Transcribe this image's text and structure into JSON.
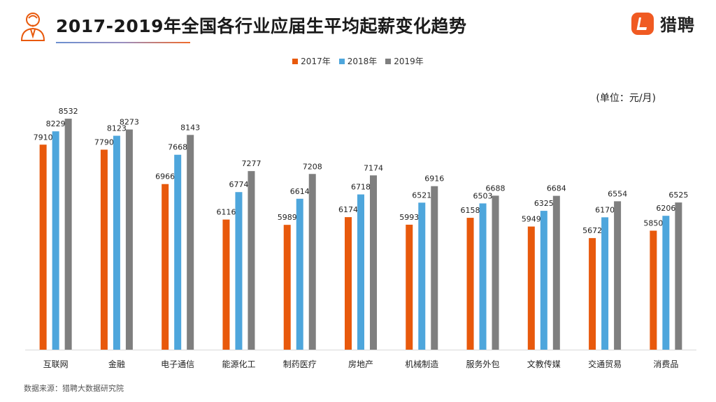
{
  "header": {
    "title": "2017-2019年全国各行业应届生平均起薪变化趋势",
    "brand_name": "猎聘",
    "brand_color": "#f05a22"
  },
  "unit_label": "(单位：元/月)",
  "source_label": "数据来源：猎聘大数据研究院",
  "colors": {
    "2017": "#e8590c",
    "2018": "#4ea6dc",
    "2019": "#7f7f7f"
  },
  "chart_data": {
    "type": "bar",
    "categories": [
      "互联网",
      "金融",
      "电子通信",
      "能源化工",
      "制药医疗",
      "房地产",
      "机械制造",
      "服务外包",
      "文教传媒",
      "交通贸易",
      "消费品"
    ],
    "series": [
      {
        "name": "2017年",
        "color": "#e8590c",
        "values": [
          7910,
          7790,
          6966,
          6116,
          5989,
          6174,
          5993,
          6158,
          5949,
          5672,
          5850
        ]
      },
      {
        "name": "2018年",
        "color": "#4ea6dc",
        "values": [
          8229,
          8123,
          7668,
          6774,
          6614,
          6718,
          6521,
          6503,
          6325,
          6170,
          6206
        ]
      },
      {
        "name": "2019年",
        "color": "#7f7f7f",
        "values": [
          8532,
          8273,
          8143,
          7277,
          7208,
          7174,
          6916,
          6688,
          6684,
          6554,
          6525
        ]
      }
    ],
    "ylim": [
      3000,
      8700
    ],
    "legend_position": "top-center",
    "grid": false
  }
}
